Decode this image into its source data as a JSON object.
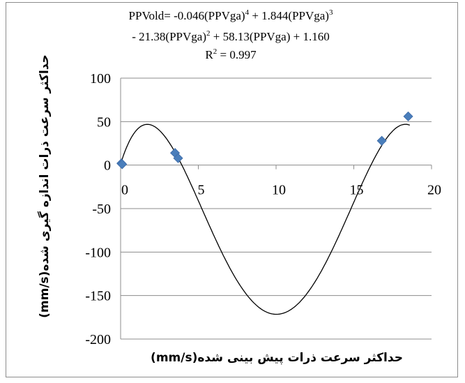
{
  "chart_data": {
    "type": "scatter",
    "equation": {
      "line1_main": "PPVold= -0.046(PPVga)",
      "line1_exp1": "4",
      "line1_mid": " + 1.844(PPVga)",
      "line1_exp2": "3",
      "line2_main": "- 21.38(PPVga)",
      "line2_exp": "2",
      "line2_rest": " + 58.13(PPVga) + 1.160",
      "r2_label": "R",
      "r2_exp": "2",
      "r2_value": " = 0.997"
    },
    "xlabel": "حداکثر سرعت ذرات پیش بینی شده(mm/s)",
    "ylabel": "حداکثر سرعت ذرات اندازه گیری شده(mm/s)",
    "xlim": [
      0,
      20
    ],
    "ylim": [
      -200,
      100
    ],
    "x_ticks": [
      "0",
      "5",
      "10",
      "15",
      "20"
    ],
    "y_ticks": [
      "100",
      "50",
      "0",
      "-50",
      "-100",
      "-150",
      "-200"
    ],
    "grid": "horizontal",
    "marker_color": "#4a7ebb",
    "points": [
      {
        "x": 0.05,
        "y": 2
      },
      {
        "x": 0.1,
        "y": 1
      },
      {
        "x": 3.5,
        "y": 14
      },
      {
        "x": 3.7,
        "y": 8
      },
      {
        "x": 16.8,
        "y": 28
      },
      {
        "x": 18.5,
        "y": 56
      }
    ],
    "trendline": {
      "type": "polynomial",
      "coefficients": [
        1.16,
        58.13,
        -21.38,
        1.844,
        -0.046
      ],
      "color": "#000000"
    }
  }
}
